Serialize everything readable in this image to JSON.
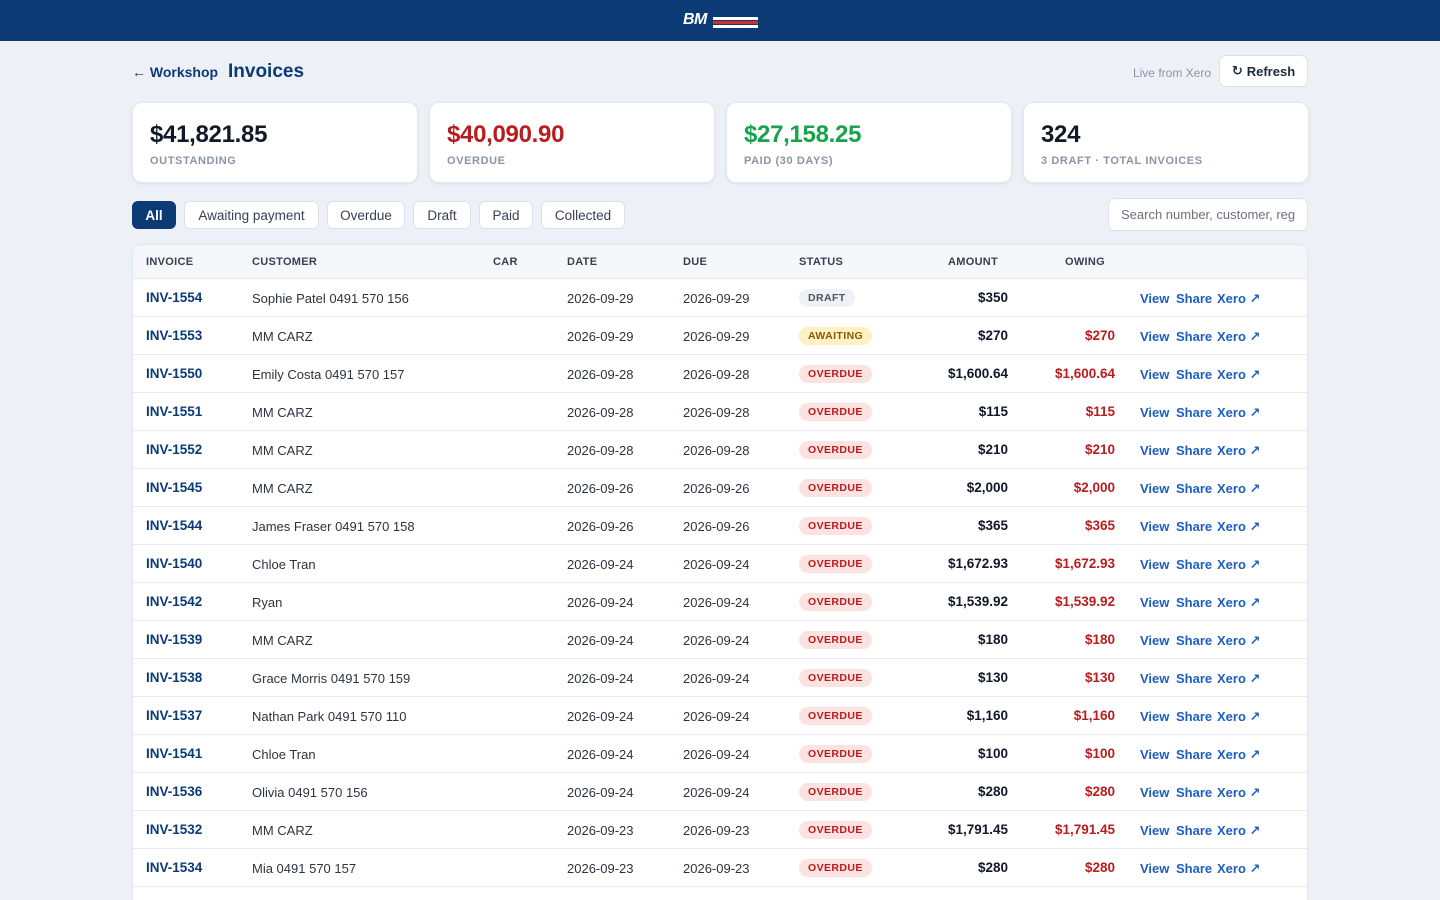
{
  "brand": {
    "logo_text": "BM",
    "colors": {
      "primary": "#0b3a75",
      "overdue": "#b91c1c",
      "paid": "#16a34a",
      "link": "#1d5fbf"
    }
  },
  "header": {
    "back_label": "← Workshop",
    "title": "Invoices",
    "live_text": "Live from Xero",
    "refresh_label": "Refresh",
    "refresh_icon": "↻"
  },
  "cards": [
    {
      "value": "$41,821.85",
      "label": "OUTSTANDING",
      "color": "#111827"
    },
    {
      "value": "$40,090.90",
      "label": "OVERDUE",
      "color": "#b91c1c"
    },
    {
      "value": "$27,158.25",
      "label": "PAID (30 DAYS)",
      "color": "#16a34a"
    },
    {
      "value": "324",
      "label": "3 DRAFT · TOTAL INVOICES",
      "color": "#111827"
    }
  ],
  "filters": [
    "All",
    "Awaiting payment",
    "Overdue",
    "Draft",
    "Paid",
    "Collected"
  ],
  "active_filter": "All",
  "search": {
    "placeholder": "Search number, customer, rego",
    "value": ""
  },
  "table": {
    "columns": [
      "INVOICE",
      "CUSTOMER",
      "CAR",
      "DATE",
      "DUE",
      "STATUS",
      "AMOUNT",
      "OWING"
    ],
    "actions": [
      "View",
      "Share",
      "Xero ↗"
    ],
    "rows": [
      {
        "invoice": "INV-1554",
        "customer": "Sophie Patel 0491 570 156",
        "car": "",
        "date": "2026-09-29",
        "due": "2026-09-29",
        "status": "DRAFT",
        "amount": "$350",
        "owing": ""
      },
      {
        "invoice": "INV-1553",
        "customer": "MM CARZ",
        "car": "",
        "date": "2026-09-29",
        "due": "2026-09-29",
        "status": "AWAITING",
        "amount": "$270",
        "owing": "$270"
      },
      {
        "invoice": "INV-1550",
        "customer": "Emily Costa 0491 570 157",
        "car": "",
        "date": "2026-09-28",
        "due": "2026-09-28",
        "status": "OVERDUE",
        "amount": "$1,600.64",
        "owing": "$1,600.64"
      },
      {
        "invoice": "INV-1551",
        "customer": "MM CARZ",
        "car": "",
        "date": "2026-09-28",
        "due": "2026-09-28",
        "status": "OVERDUE",
        "amount": "$115",
        "owing": "$115"
      },
      {
        "invoice": "INV-1552",
        "customer": "MM CARZ",
        "car": "",
        "date": "2026-09-28",
        "due": "2026-09-28",
        "status": "OVERDUE",
        "amount": "$210",
        "owing": "$210"
      },
      {
        "invoice": "INV-1545",
        "customer": "MM CARZ",
        "car": "",
        "date": "2026-09-26",
        "due": "2026-09-26",
        "status": "OVERDUE",
        "amount": "$2,000",
        "owing": "$2,000"
      },
      {
        "invoice": "INV-1544",
        "customer": "James Fraser 0491 570 158",
        "car": "",
        "date": "2026-09-26",
        "due": "2026-09-26",
        "status": "OVERDUE",
        "amount": "$365",
        "owing": "$365"
      },
      {
        "invoice": "INV-1540",
        "customer": "Chloe Tran",
        "car": "",
        "date": "2026-09-24",
        "due": "2026-09-24",
        "status": "OVERDUE",
        "amount": "$1,672.93",
        "owing": "$1,672.93"
      },
      {
        "invoice": "INV-1542",
        "customer": "Ryan",
        "car": "",
        "date": "2026-09-24",
        "due": "2026-09-24",
        "status": "OVERDUE",
        "amount": "$1,539.92",
        "owing": "$1,539.92"
      },
      {
        "invoice": "INV-1539",
        "customer": "MM CARZ",
        "car": "",
        "date": "2026-09-24",
        "due": "2026-09-24",
        "status": "OVERDUE",
        "amount": "$180",
        "owing": "$180"
      },
      {
        "invoice": "INV-1538",
        "customer": "Grace Morris 0491 570 159",
        "car": "",
        "date": "2026-09-24",
        "due": "2026-09-24",
        "status": "OVERDUE",
        "amount": "$130",
        "owing": "$130"
      },
      {
        "invoice": "INV-1537",
        "customer": "Nathan Park 0491 570 110",
        "car": "",
        "date": "2026-09-24",
        "due": "2026-09-24",
        "status": "OVERDUE",
        "amount": "$1,160",
        "owing": "$1,160"
      },
      {
        "invoice": "INV-1541",
        "customer": "Chloe Tran",
        "car": "",
        "date": "2026-09-24",
        "due": "2026-09-24",
        "status": "OVERDUE",
        "amount": "$100",
        "owing": "$100"
      },
      {
        "invoice": "INV-1536",
        "customer": "Olivia 0491 570 156",
        "car": "",
        "date": "2026-09-24",
        "due": "2026-09-24",
        "status": "OVERDUE",
        "amount": "$280",
        "owing": "$280"
      },
      {
        "invoice": "INV-1532",
        "customer": "MM CARZ",
        "car": "",
        "date": "2026-09-23",
        "due": "2026-09-23",
        "status": "OVERDUE",
        "amount": "$1,791.45",
        "owing": "$1,791.45"
      },
      {
        "invoice": "INV-1534",
        "customer": "Mia 0491 570 157",
        "car": "",
        "date": "2026-09-23",
        "due": "2026-09-23",
        "status": "OVERDUE",
        "amount": "$280",
        "owing": "$280"
      }
    ]
  }
}
